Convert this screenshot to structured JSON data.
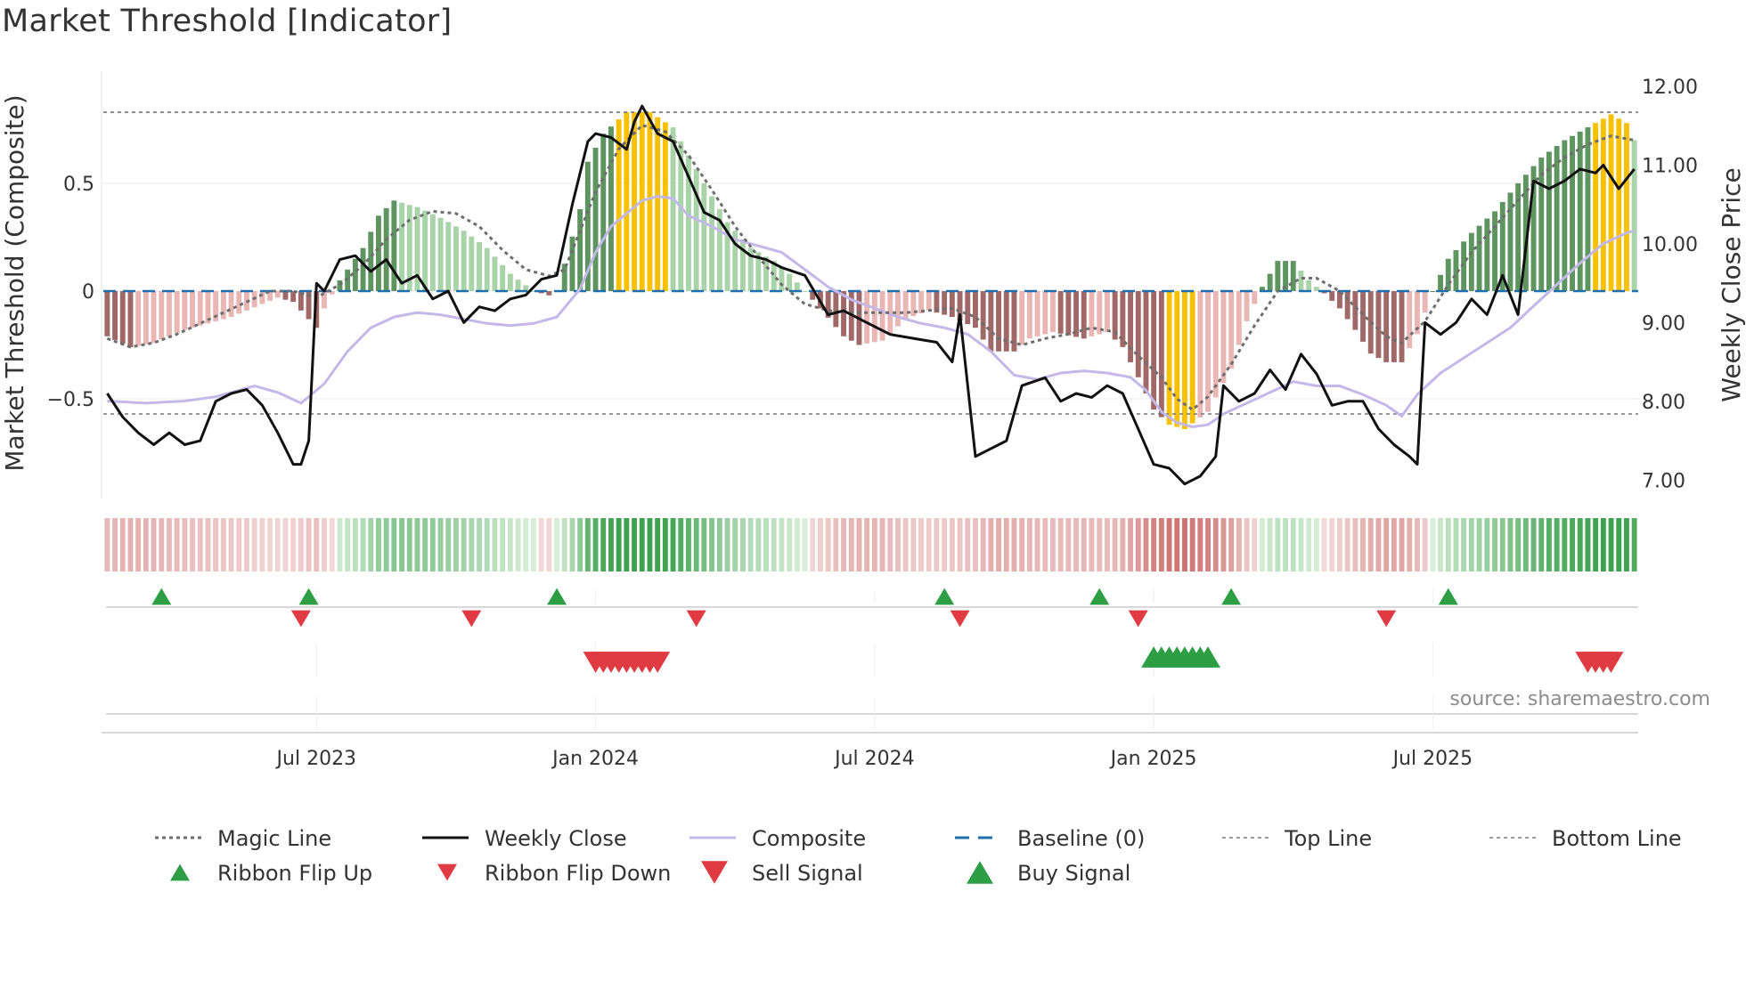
{
  "page": {
    "title": "Market Threshold [Indicator]",
    "source": "source: sharemaestro.com"
  },
  "colors": {
    "bull_strong": "#5e9460",
    "bull_weak": "#a9d3a8",
    "bear_strong": "#a06866",
    "bear_weak": "#e9b6b4",
    "extreme": "#f7c100",
    "close": "#111111",
    "composite": "#c4b8e8",
    "magic": "#6e6e6e",
    "baseline": "#1f6fae",
    "threshold": "#777777",
    "buy": "#2e9e44",
    "sell": "#e03a42"
  },
  "chart_data": {
    "type": "composite-indicator",
    "title": "Market Threshold [Indicator]",
    "ylabel_left": "Market Threshold (Composite)",
    "ylabel_right": "Weekly Close Price",
    "ylim_left": [
      -0.95,
      0.95
    ],
    "ylim_right": [
      6.8,
      12.0
    ],
    "yticks_left": [
      {
        "value": 0.5,
        "label": "0.5"
      },
      {
        "value": 0,
        "label": "0"
      },
      {
        "value": -0.5,
        "label": "−0.5"
      }
    ],
    "yticks_right": [
      {
        "value": 12,
        "label": "12.00"
      },
      {
        "value": 11,
        "label": "11.00"
      },
      {
        "value": 10,
        "label": "10.00"
      },
      {
        "value": 9,
        "label": "9.00"
      },
      {
        "value": 8,
        "label": "8.00"
      },
      {
        "value": 7,
        "label": "7.00"
      }
    ],
    "xticks": [
      {
        "week": 27,
        "label": "Jul 2023"
      },
      {
        "week": 63,
        "label": "Jan 2024"
      },
      {
        "week": 99,
        "label": "Jul 2024"
      },
      {
        "week": 135,
        "label": "Jan 2025"
      },
      {
        "week": 171,
        "label": "Jul 2025"
      }
    ],
    "weeks": 198,
    "top_line": 0.83,
    "bottom_line": -0.57,
    "baseline": 0,
    "composite_knots": [
      [
        0,
        -0.21
      ],
      [
        3,
        -0.26
      ],
      [
        6,
        -0.24
      ],
      [
        10,
        -0.18
      ],
      [
        16,
        -0.12
      ],
      [
        20,
        -0.06
      ],
      [
        22,
        -0.03
      ],
      [
        24,
        -0.05
      ],
      [
        26,
        -0.13
      ],
      [
        27,
        -0.17
      ],
      [
        28,
        -0.08
      ],
      [
        30,
        0.05
      ],
      [
        33,
        0.2
      ],
      [
        35,
        0.35
      ],
      [
        37,
        0.42
      ],
      [
        40,
        0.39
      ],
      [
        43,
        0.34
      ],
      [
        46,
        0.28
      ],
      [
        49,
        0.2
      ],
      [
        52,
        0.08
      ],
      [
        55,
        0.0
      ],
      [
        57,
        -0.02
      ],
      [
        58,
        0.0
      ],
      [
        61,
        0.38
      ],
      [
        62,
        0.6
      ],
      [
        64,
        0.73
      ],
      [
        67,
        0.83
      ],
      [
        70,
        0.83
      ],
      [
        73,
        0.76
      ],
      [
        75,
        0.63
      ],
      [
        77,
        0.5
      ],
      [
        80,
        0.32
      ],
      [
        83,
        0.2
      ],
      [
        86,
        0.14
      ],
      [
        88,
        0.08
      ],
      [
        90,
        0.0
      ],
      [
        92,
        -0.08
      ],
      [
        95,
        -0.21
      ],
      [
        97,
        -0.25
      ],
      [
        100,
        -0.23
      ],
      [
        103,
        -0.13
      ],
      [
        106,
        -0.09
      ],
      [
        109,
        -0.12
      ],
      [
        112,
        -0.17
      ],
      [
        114,
        -0.28
      ],
      [
        117,
        -0.28
      ],
      [
        119,
        -0.22
      ],
      [
        122,
        -0.19
      ],
      [
        126,
        -0.22
      ],
      [
        129,
        -0.19
      ],
      [
        131,
        -0.26
      ],
      [
        133,
        -0.4
      ],
      [
        135,
        -0.55
      ],
      [
        137,
        -0.62
      ],
      [
        139,
        -0.64
      ],
      [
        142,
        -0.56
      ],
      [
        145,
        -0.36
      ],
      [
        147,
        -0.14
      ],
      [
        149,
        0.02
      ],
      [
        151,
        0.14
      ],
      [
        153,
        0.14
      ],
      [
        155,
        0.05
      ],
      [
        157,
        -0.01
      ],
      [
        159,
        -0.08
      ],
      [
        161,
        -0.18
      ],
      [
        163,
        -0.29
      ],
      [
        165,
        -0.33
      ],
      [
        167,
        -0.33
      ],
      [
        169,
        -0.2
      ],
      [
        171,
        0.0
      ],
      [
        173,
        0.15
      ],
      [
        176,
        0.27
      ],
      [
        179,
        0.37
      ],
      [
        182,
        0.5
      ],
      [
        185,
        0.62
      ],
      [
        188,
        0.7
      ],
      [
        190,
        0.74
      ],
      [
        192,
        0.78
      ],
      [
        194,
        0.82
      ],
      [
        196,
        0.78
      ],
      [
        197,
        0.7
      ]
    ],
    "magic_knots": [
      [
        0,
        -0.22
      ],
      [
        3,
        -0.26
      ],
      [
        6,
        -0.24
      ],
      [
        9,
        -0.2
      ],
      [
        12,
        -0.15
      ],
      [
        15,
        -0.1
      ],
      [
        18,
        -0.05
      ],
      [
        21,
        0.0
      ],
      [
        24,
        0.0
      ],
      [
        27,
        -0.03
      ],
      [
        30,
        0.03
      ],
      [
        33,
        0.12
      ],
      [
        36,
        0.24
      ],
      [
        39,
        0.33
      ],
      [
        42,
        0.37
      ],
      [
        45,
        0.36
      ],
      [
        48,
        0.3
      ],
      [
        51,
        0.19
      ],
      [
        54,
        0.1
      ],
      [
        57,
        0.07
      ],
      [
        59,
        0.1
      ],
      [
        61,
        0.28
      ],
      [
        63,
        0.46
      ],
      [
        66,
        0.66
      ],
      [
        69,
        0.77
      ],
      [
        72,
        0.74
      ],
      [
        75,
        0.63
      ],
      [
        78,
        0.47
      ],
      [
        81,
        0.3
      ],
      [
        84,
        0.16
      ],
      [
        87,
        0.03
      ],
      [
        90,
        -0.06
      ],
      [
        93,
        -0.09
      ],
      [
        96,
        -0.1
      ],
      [
        100,
        -0.1
      ],
      [
        103,
        -0.1
      ],
      [
        106,
        -0.09
      ],
      [
        109,
        -0.08
      ],
      [
        112,
        -0.12
      ],
      [
        115,
        -0.22
      ],
      [
        118,
        -0.25
      ],
      [
        121,
        -0.22
      ],
      [
        124,
        -0.2
      ],
      [
        127,
        -0.17
      ],
      [
        130,
        -0.19
      ],
      [
        133,
        -0.3
      ],
      [
        136,
        -0.4
      ],
      [
        138,
        -0.5
      ],
      [
        140,
        -0.55
      ],
      [
        142,
        -0.49
      ],
      [
        145,
        -0.34
      ],
      [
        148,
        -0.16
      ],
      [
        151,
        0.0
      ],
      [
        154,
        0.06
      ],
      [
        156,
        0.06
      ],
      [
        159,
        0.0
      ],
      [
        162,
        -0.11
      ],
      [
        165,
        -0.21
      ],
      [
        167,
        -0.24
      ],
      [
        170,
        -0.14
      ],
      [
        173,
        0.03
      ],
      [
        176,
        0.18
      ],
      [
        179,
        0.3
      ],
      [
        182,
        0.42
      ],
      [
        185,
        0.54
      ],
      [
        188,
        0.62
      ],
      [
        191,
        0.68
      ],
      [
        194,
        0.72
      ],
      [
        197,
        0.7
      ]
    ],
    "composite_line_knots": [
      [
        0,
        -0.51
      ],
      [
        5,
        -0.52
      ],
      [
        10,
        -0.51
      ],
      [
        14,
        -0.49
      ],
      [
        19,
        -0.44
      ],
      [
        22,
        -0.47
      ],
      [
        25,
        -0.52
      ],
      [
        28,
        -0.43
      ],
      [
        31,
        -0.28
      ],
      [
        34,
        -0.17
      ],
      [
        37,
        -0.12
      ],
      [
        40,
        -0.1
      ],
      [
        43,
        -0.11
      ],
      [
        46,
        -0.13
      ],
      [
        49,
        -0.15
      ],
      [
        52,
        -0.16
      ],
      [
        55,
        -0.15
      ],
      [
        58,
        -0.12
      ],
      [
        61,
        0.01
      ],
      [
        63,
        0.18
      ],
      [
        65,
        0.3
      ],
      [
        67,
        0.36
      ],
      [
        69,
        0.42
      ],
      [
        71,
        0.44
      ],
      [
        73,
        0.43
      ],
      [
        75,
        0.35
      ],
      [
        78,
        0.3
      ],
      [
        81,
        0.24
      ],
      [
        84,
        0.21
      ],
      [
        87,
        0.18
      ],
      [
        90,
        0.1
      ],
      [
        93,
        0.02
      ],
      [
        96,
        -0.04
      ],
      [
        99,
        -0.08
      ],
      [
        102,
        -0.12
      ],
      [
        105,
        -0.15
      ],
      [
        108,
        -0.17
      ],
      [
        111,
        -0.2
      ],
      [
        114,
        -0.28
      ],
      [
        117,
        -0.39
      ],
      [
        120,
        -0.41
      ],
      [
        123,
        -0.38
      ],
      [
        126,
        -0.37
      ],
      [
        129,
        -0.38
      ],
      [
        132,
        -0.4
      ],
      [
        134,
        -0.46
      ],
      [
        136,
        -0.56
      ],
      [
        138,
        -0.61
      ],
      [
        140,
        -0.63
      ],
      [
        142,
        -0.62
      ],
      [
        144,
        -0.57
      ],
      [
        147,
        -0.52
      ],
      [
        150,
        -0.47
      ],
      [
        153,
        -0.42
      ],
      [
        156,
        -0.44
      ],
      [
        159,
        -0.44
      ],
      [
        162,
        -0.48
      ],
      [
        165,
        -0.53
      ],
      [
        167,
        -0.58
      ],
      [
        169,
        -0.48
      ],
      [
        172,
        -0.38
      ],
      [
        175,
        -0.31
      ],
      [
        178,
        -0.24
      ],
      [
        181,
        -0.17
      ],
      [
        184,
        -0.07
      ],
      [
        187,
        0.03
      ],
      [
        190,
        0.13
      ],
      [
        193,
        0.22
      ],
      [
        196,
        0.27
      ],
      [
        197,
        0.28
      ]
    ],
    "weekly_close_knots": [
      [
        0,
        8.1
      ],
      [
        2,
        7.8
      ],
      [
        4,
        7.6
      ],
      [
        6,
        7.45
      ],
      [
        8,
        7.6
      ],
      [
        10,
        7.45
      ],
      [
        12,
        7.5
      ],
      [
        14,
        8.0
      ],
      [
        16,
        8.1
      ],
      [
        18,
        8.15
      ],
      [
        20,
        7.95
      ],
      [
        22,
        7.6
      ],
      [
        24,
        7.2
      ],
      [
        25,
        7.2
      ],
      [
        26,
        7.5
      ],
      [
        27,
        9.5
      ],
      [
        28,
        9.4
      ],
      [
        30,
        9.8
      ],
      [
        32,
        9.85
      ],
      [
        34,
        9.65
      ],
      [
        36,
        9.8
      ],
      [
        38,
        9.5
      ],
      [
        40,
        9.6
      ],
      [
        42,
        9.3
      ],
      [
        44,
        9.4
      ],
      [
        46,
        9.0
      ],
      [
        48,
        9.2
      ],
      [
        50,
        9.15
      ],
      [
        52,
        9.3
      ],
      [
        54,
        9.35
      ],
      [
        56,
        9.55
      ],
      [
        58,
        9.6
      ],
      [
        60,
        10.5
      ],
      [
        61,
        10.9
      ],
      [
        62,
        11.3
      ],
      [
        63,
        11.4
      ],
      [
        65,
        11.35
      ],
      [
        67,
        11.2
      ],
      [
        68,
        11.55
      ],
      [
        69,
        11.75
      ],
      [
        71,
        11.4
      ],
      [
        73,
        11.3
      ],
      [
        75,
        10.85
      ],
      [
        77,
        10.4
      ],
      [
        79,
        10.3
      ],
      [
        81,
        10.0
      ],
      [
        83,
        9.85
      ],
      [
        85,
        9.8
      ],
      [
        87,
        9.7
      ],
      [
        90,
        9.6
      ],
      [
        93,
        9.1
      ],
      [
        95,
        9.15
      ],
      [
        98,
        9.0
      ],
      [
        101,
        8.85
      ],
      [
        104,
        8.8
      ],
      [
        107,
        8.75
      ],
      [
        109,
        8.5
      ],
      [
        110,
        9.1
      ],
      [
        112,
        7.3
      ],
      [
        114,
        7.4
      ],
      [
        116,
        7.5
      ],
      [
        118,
        8.2
      ],
      [
        121,
        8.3
      ],
      [
        123,
        8.0
      ],
      [
        125,
        8.1
      ],
      [
        127,
        8.05
      ],
      [
        129,
        8.2
      ],
      [
        131,
        8.1
      ],
      [
        133,
        7.65
      ],
      [
        135,
        7.2
      ],
      [
        137,
        7.15
      ],
      [
        139,
        6.95
      ],
      [
        141,
        7.05
      ],
      [
        143,
        7.3
      ],
      [
        144,
        8.2
      ],
      [
        146,
        8.0
      ],
      [
        148,
        8.1
      ],
      [
        150,
        8.4
      ],
      [
        152,
        8.15
      ],
      [
        154,
        8.6
      ],
      [
        156,
        8.35
      ],
      [
        158,
        7.95
      ],
      [
        160,
        8.0
      ],
      [
        162,
        8.0
      ],
      [
        164,
        7.65
      ],
      [
        166,
        7.45
      ],
      [
        168,
        7.3
      ],
      [
        169,
        7.2
      ],
      [
        170,
        9.0
      ],
      [
        172,
        8.85
      ],
      [
        174,
        9.0
      ],
      [
        176,
        9.3
      ],
      [
        178,
        9.1
      ],
      [
        180,
        9.6
      ],
      [
        182,
        9.1
      ],
      [
        184,
        10.8
      ],
      [
        186,
        10.7
      ],
      [
        188,
        10.8
      ],
      [
        190,
        10.95
      ],
      [
        192,
        10.9
      ],
      [
        193,
        11.0
      ],
      [
        195,
        10.7
      ],
      [
        197,
        10.95
      ]
    ],
    "ribbon_signals": {
      "flip_up_weeks": [
        7,
        26,
        58,
        108,
        128,
        145,
        173
      ],
      "flip_down_weeks": [
        25,
        47,
        76,
        110,
        133,
        165
      ]
    },
    "trade_signals": {
      "sell_weeks": [
        63,
        64,
        65,
        66,
        67,
        68,
        69,
        70,
        71,
        191,
        192,
        193,
        194
      ],
      "buy_weeks": [
        135,
        136,
        137,
        138,
        139,
        140,
        141,
        142
      ]
    }
  },
  "legend": {
    "items": [
      {
        "key": "magic",
        "label": "Magic Line"
      },
      {
        "key": "close",
        "label": "Weekly Close"
      },
      {
        "key": "composite",
        "label": "Composite"
      },
      {
        "key": "baseline",
        "label": "Baseline (0)"
      },
      {
        "key": "top",
        "label": "Top Line"
      },
      {
        "key": "bottom",
        "label": "Bottom Line"
      },
      {
        "key": "flipup",
        "label": "Ribbon Flip Up"
      },
      {
        "key": "flipdown",
        "label": "Ribbon Flip Down"
      },
      {
        "key": "sell",
        "label": "Sell Signal"
      },
      {
        "key": "buy",
        "label": "Buy Signal"
      }
    ]
  }
}
